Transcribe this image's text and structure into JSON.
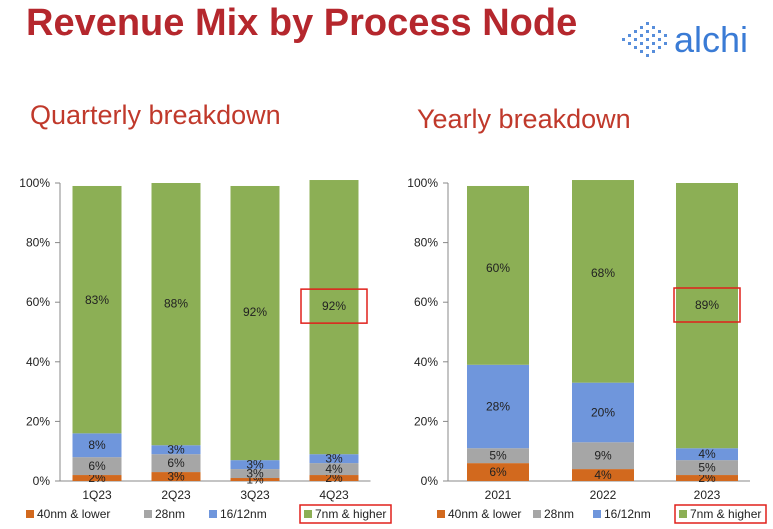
{
  "header": {
    "title": "Revenue Mix by Process Node",
    "logo_text": "alchi"
  },
  "colors": {
    "title": "#b5272d",
    "subtitle": "#c0392b",
    "highlight_box": "#e0201b",
    "logo_blue": "#3a7bd5"
  },
  "chart_data": [
    {
      "type": "bar",
      "stacked": true,
      "title": "Quarterly breakdown",
      "categories": [
        "1Q23",
        "2Q23",
        "3Q23",
        "4Q23"
      ],
      "ylim": [
        0,
        100
      ],
      "y_ticks": [
        "0%",
        "20%",
        "40%",
        "60%",
        "80%",
        "100%"
      ],
      "series": [
        {
          "name": "40nm & lower",
          "color": "#d2691e",
          "values": [
            2,
            3,
            1,
            2
          ],
          "labels": [
            "2%",
            "3%",
            "1%",
            "2%"
          ]
        },
        {
          "name": "28nm",
          "color": "#a6a6a6",
          "values": [
            6,
            6,
            3,
            4
          ],
          "labels": [
            "6%",
            "6%",
            "3%",
            "4%"
          ]
        },
        {
          "name": "16/12nm",
          "color": "#6f96dc",
          "values": [
            8,
            3,
            3,
            3
          ],
          "labels": [
            "8%",
            "3%",
            "3%",
            "3%"
          ]
        },
        {
          "name": "7nm & higher",
          "color": "#8caf55",
          "values": [
            83,
            88,
            92,
            92
          ],
          "labels": [
            "83%",
            "88%",
            "92%",
            "92%"
          ]
        }
      ],
      "highlight": {
        "category_index": 3,
        "series_index": 3
      },
      "legend_highlight_index": 3,
      "grid": false,
      "legend": "bottom"
    },
    {
      "type": "bar",
      "stacked": true,
      "title": "Yearly breakdown",
      "categories": [
        "2021",
        "2022",
        "2023"
      ],
      "ylim": [
        0,
        100
      ],
      "y_ticks": [
        "0%",
        "20%",
        "40%",
        "60%",
        "80%",
        "100%"
      ],
      "series": [
        {
          "name": "40nm & lower",
          "color": "#d2691e",
          "values": [
            6,
            4,
            2
          ],
          "labels": [
            "6%",
            "4%",
            "2%"
          ]
        },
        {
          "name": "28nm",
          "color": "#a6a6a6",
          "values": [
            5,
            9,
            5
          ],
          "labels": [
            "5%",
            "9%",
            "5%"
          ]
        },
        {
          "name": "16/12nm",
          "color": "#6f96dc",
          "values": [
            28,
            20,
            4
          ],
          "labels": [
            "28%",
            "20%",
            "4%"
          ]
        },
        {
          "name": "7nm & higher",
          "color": "#8caf55",
          "values": [
            60,
            68,
            89
          ],
          "labels": [
            "60%",
            "68%",
            "89%"
          ]
        }
      ],
      "highlight": {
        "category_index": 2,
        "series_index": 3
      },
      "legend_highlight_index": 3,
      "grid": false,
      "legend": "bottom"
    }
  ]
}
